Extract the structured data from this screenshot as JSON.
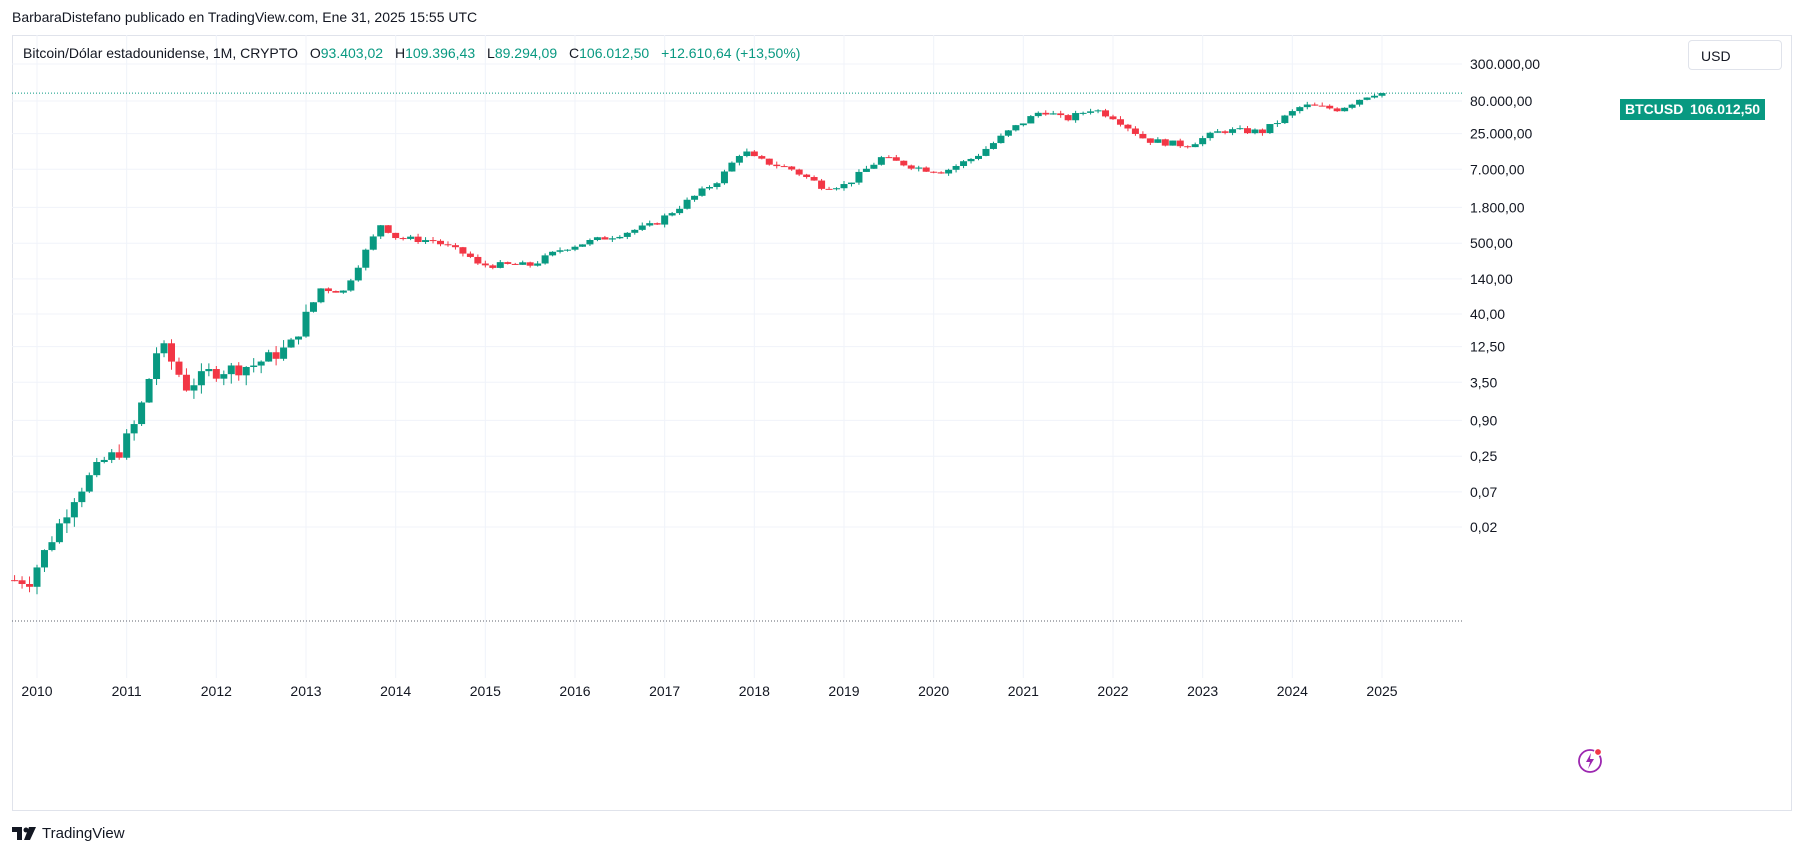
{
  "caption": "BarbaraDistefano publicado en TradingView.com, Ene 31, 2025 15:55 UTC",
  "legend": {
    "symbol": "Bitcoin/Dólar estadounidense, 1M, CRYPTO",
    "o_key": "O",
    "o_val": "93.403,02",
    "h_key": "H",
    "h_val": "109.396,43",
    "l_key": "L",
    "l_val": "89.294,09",
    "c_key": "C",
    "c_val": "106.012,50",
    "change": "+12.610,64 (+13,50%)"
  },
  "currency_button": "USD",
  "price_tag": {
    "symbol": "BTCUSD",
    "value": "106.012,50"
  },
  "footer_brand": "TradingView",
  "colors": {
    "up": "#089981",
    "down": "#f23645",
    "grid": "#f0f3fa",
    "accent_icon": "#9c27b0"
  },
  "icons": [
    "tradingview-logo-icon",
    "lightning-icon"
  ],
  "chart_data": {
    "type": "candlestick",
    "scale": "log",
    "y_tick_labels": [
      "300.000,00",
      "80.000,00",
      "25.000,00",
      "7.000,00",
      "1.800,00",
      "500,00",
      "140,00",
      "40,00",
      "12,50",
      "3,50",
      "0,90",
      "0,25",
      "0,07",
      "0,02"
    ],
    "y_ticks": [
      300000,
      80000,
      25000,
      7000,
      1800,
      500,
      140,
      40,
      12.5,
      3.5,
      0.9,
      0.25,
      0.07,
      0.02
    ],
    "x_ticks": [
      "2010",
      "2011",
      "2012",
      "2013",
      "2014",
      "2015",
      "2016",
      "2017",
      "2018",
      "2019",
      "2020",
      "2021",
      "2022",
      "2023",
      "2024",
      "2025"
    ],
    "ylim": [
      0.0008,
      400000
    ],
    "xlim": [
      2009.7,
      2026.3
    ],
    "last_price": 106012.5,
    "interval": "1M",
    "anchors": [
      [
        2009.75,
        0.003
      ],
      [
        2010.0,
        0.003
      ],
      [
        2010.5,
        0.06
      ],
      [
        2010.8,
        0.2
      ],
      [
        2011.0,
        0.3
      ],
      [
        2011.2,
        0.9
      ],
      [
        2011.45,
        15
      ],
      [
        2011.75,
        3
      ],
      [
        2012.0,
        5
      ],
      [
        2012.5,
        6.5
      ],
      [
        2012.9,
        12.5
      ],
      [
        2013.25,
        100
      ],
      [
        2013.5,
        90
      ],
      [
        2013.92,
        1000
      ],
      [
        2014.1,
        600
      ],
      [
        2014.5,
        550
      ],
      [
        2014.9,
        320
      ],
      [
        2015.0,
        230
      ],
      [
        2015.6,
        230
      ],
      [
        2015.95,
        420
      ],
      [
        2016.5,
        650
      ],
      [
        2016.95,
        960
      ],
      [
        2017.35,
        2300
      ],
      [
        2017.7,
        5000
      ],
      [
        2017.95,
        14000
      ],
      [
        2018.1,
        10000
      ],
      [
        2018.5,
        7000
      ],
      [
        2018.85,
        3800
      ],
      [
        2019.1,
        4000
      ],
      [
        2019.5,
        10500
      ],
      [
        2019.95,
        7200
      ],
      [
        2020.2,
        6500
      ],
      [
        2020.55,
        11000
      ],
      [
        2020.95,
        29000
      ],
      [
        2021.3,
        58000
      ],
      [
        2021.55,
        41000
      ],
      [
        2021.85,
        61000
      ],
      [
        2022.1,
        45000
      ],
      [
        2022.45,
        20000
      ],
      [
        2022.9,
        16500
      ],
      [
        2023.3,
        28000
      ],
      [
        2023.75,
        27000
      ],
      [
        2024.2,
        68000
      ],
      [
        2024.6,
        60000
      ],
      [
        2024.9,
        96000
      ],
      [
        2025.0,
        106012.5
      ]
    ]
  }
}
